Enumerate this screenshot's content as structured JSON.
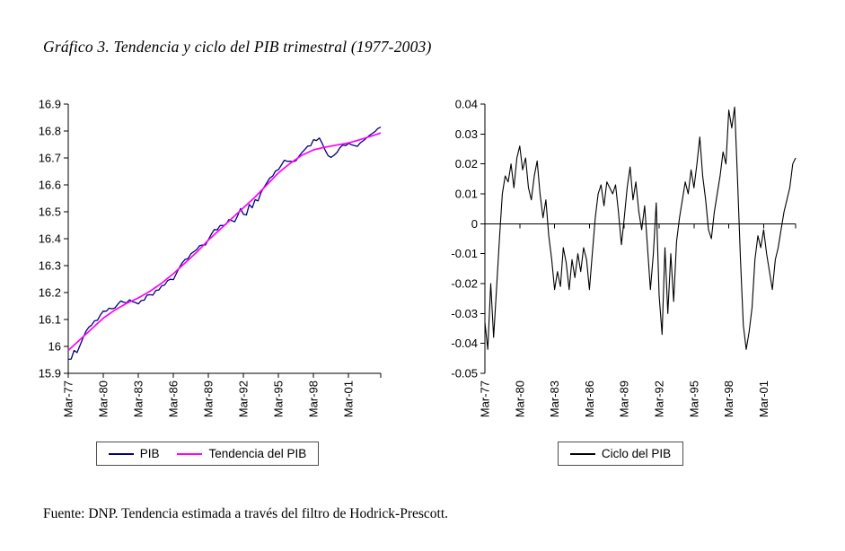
{
  "title": "Gráfico 3. Tendencia y ciclo del PIB trimestral (1977-2003)",
  "source": "Fuente: DNP. Tendencia estimada a través del filtro de Hodrick-Prescott.",
  "chart_data": [
    {
      "type": "line",
      "name": "tendencia-del-pib",
      "grid": false,
      "legend_position": "bottom",
      "n_points": 108,
      "x_tick_every": 12,
      "x_tick_labels": [
        "Mar-77",
        "Mar-80",
        "Mar-83",
        "Mar-86",
        "Mar-89",
        "Mar-92",
        "Mar-95",
        "Mar-98",
        "Mar-01"
      ],
      "ylim": [
        15.9,
        16.9
      ],
      "y_ticks": [
        16.9,
        16.8,
        16.7,
        16.6,
        16.5,
        16.4,
        16.3,
        16.2,
        16.1,
        16.0,
        15.9
      ],
      "y_tick_labels": [
        "16.9",
        "16.8",
        "16.7",
        "16.6",
        "16.5",
        "16.4",
        "16.3",
        "16.2",
        "16.1",
        "16",
        "15.9"
      ],
      "series": [
        {
          "name": "PIB",
          "color": "#000080",
          "values": [
            15.952,
            15.953,
            15.985,
            15.977,
            16.003,
            16.03,
            16.055,
            16.071,
            16.079,
            16.095,
            16.097,
            16.117,
            16.131,
            16.1305,
            16.142,
            16.1395,
            16.143,
            16.1573,
            16.1685,
            16.1638,
            16.162,
            16.173,
            16.166,
            16.163,
            16.158,
            16.1703,
            16.1715,
            16.1908,
            16.192,
            16.1905,
            16.208,
            16.2095,
            16.225,
            16.2278,
            16.2445,
            16.2493,
            16.248,
            16.27,
            16.292,
            16.31,
            16.323,
            16.326,
            16.344,
            16.352,
            16.36,
            16.3743,
            16.3765,
            16.3768,
            16.397,
            16.417,
            16.434,
            16.433,
            16.449,
            16.449,
            16.453,
            16.471,
            16.467,
            16.463,
            16.485,
            16.512,
            16.491,
            16.488,
            16.527,
            16.515,
            16.545,
            16.5403,
            16.5715,
            16.5908,
            16.608,
            16.6253,
            16.6325,
            16.6518,
            16.657,
            16.6738,
            16.6915,
            16.6873,
            16.688,
            16.6855,
            16.69,
            16.7065,
            16.72,
            16.731,
            16.744,
            16.745,
            16.768,
            16.7645,
            16.774,
            16.7525,
            16.728,
            16.708,
            16.702,
            16.71,
            16.72,
            16.738,
            16.748,
            16.746,
            16.754,
            16.749,
            16.746,
            16.743,
            16.756,
            16.7635,
            16.773,
            16.7825,
            16.79,
            16.7975,
            16.809,
            16.8145
          ]
        },
        {
          "name": "Tendencia del PIB",
          "color": "#FF00FF",
          "values": [
            15.985,
            15.995,
            16.005,
            16.015,
            16.025,
            16.035,
            16.045,
            16.055,
            16.065,
            16.075,
            16.085,
            16.095,
            16.105,
            16.1125,
            16.12,
            16.1275,
            16.135,
            16.1413,
            16.1475,
            16.1538,
            16.16,
            16.165,
            16.17,
            16.175,
            16.18,
            16.1863,
            16.1925,
            16.1988,
            16.205,
            16.2125,
            16.22,
            16.2275,
            16.235,
            16.2438,
            16.2525,
            16.2613,
            16.27,
            16.28,
            16.29,
            16.3,
            16.31,
            16.32,
            16.33,
            16.34,
            16.35,
            16.3613,
            16.3725,
            16.3838,
            16.395,
            16.405,
            16.415,
            16.425,
            16.435,
            16.445,
            16.455,
            16.465,
            16.475,
            16.485,
            16.495,
            16.505,
            16.515,
            16.525,
            16.535,
            16.545,
            16.555,
            16.5663,
            16.5775,
            16.5888,
            16.6,
            16.6113,
            16.6225,
            16.6338,
            16.645,
            16.6538,
            16.6625,
            16.6713,
            16.68,
            16.6875,
            16.695,
            16.7025,
            16.71,
            16.715,
            16.72,
            16.725,
            16.73,
            16.7325,
            16.735,
            16.7375,
            16.74,
            16.742,
            16.744,
            16.746,
            16.748,
            16.75,
            16.752,
            16.754,
            16.756,
            16.759,
            16.762,
            16.765,
            16.768,
            16.7715,
            16.775,
            16.7785,
            16.782,
            16.7855,
            16.789,
            16.7925
          ]
        }
      ]
    },
    {
      "type": "line",
      "name": "ciclo-del-pib",
      "grid": false,
      "legend_position": "bottom",
      "n_points": 108,
      "x_tick_every": 12,
      "x_axis_at": 0,
      "x_tick_labels": [
        "Mar-77",
        "Mar-80",
        "Mar-83",
        "Mar-86",
        "Mar-89",
        "Mar-92",
        "Mar-95",
        "Mar-98",
        "Mar-01"
      ],
      "ylim": [
        -0.05,
        0.04
      ],
      "y_ticks": [
        0.04,
        0.03,
        0.02,
        0.01,
        0,
        -0.01,
        -0.02,
        -0.03,
        -0.04,
        -0.05
      ],
      "y_tick_labels": [
        "0.04",
        "0.03",
        "0.02",
        "0.01",
        "0",
        "-0.01",
        "-0.02",
        "-0.03",
        "-0.04",
        "-0.05"
      ],
      "series": [
        {
          "name": "Ciclo del PIB",
          "color": "#000000",
          "values": [
            -0.033,
            -0.042,
            -0.02,
            -0.038,
            -0.022,
            -0.005,
            0.01,
            0.016,
            0.014,
            0.02,
            0.012,
            0.022,
            0.026,
            0.018,
            0.022,
            0.012,
            0.008,
            0.016,
            0.021,
            0.01,
            0.002,
            0.008,
            -0.004,
            -0.012,
            -0.022,
            -0.016,
            -0.021,
            -0.008,
            -0.013,
            -0.022,
            -0.012,
            -0.018,
            -0.01,
            -0.016,
            -0.008,
            -0.012,
            -0.022,
            -0.01,
            0.002,
            0.01,
            0.013,
            0.006,
            0.014,
            0.012,
            0.01,
            0.013,
            0.004,
            -0.007,
            0.002,
            0.012,
            0.019,
            0.008,
            0.014,
            0.004,
            -0.002,
            0.006,
            -0.008,
            -0.022,
            -0.01,
            0.007,
            -0.024,
            -0.037,
            -0.008,
            -0.03,
            -0.01,
            -0.026,
            -0.006,
            0.002,
            0.008,
            0.014,
            0.01,
            0.018,
            0.012,
            0.02,
            0.029,
            0.016,
            0.008,
            -0.002,
            -0.005,
            0.004,
            0.01,
            0.016,
            0.024,
            0.02,
            0.038,
            0.032,
            0.039,
            0.015,
            -0.012,
            -0.034,
            -0.042,
            -0.036,
            -0.028,
            -0.012,
            -0.004,
            -0.008,
            -0.002,
            -0.01,
            -0.016,
            -0.022,
            -0.012,
            -0.008,
            -0.002,
            0.004,
            0.008,
            0.012,
            0.02,
            0.022
          ]
        }
      ]
    }
  ]
}
